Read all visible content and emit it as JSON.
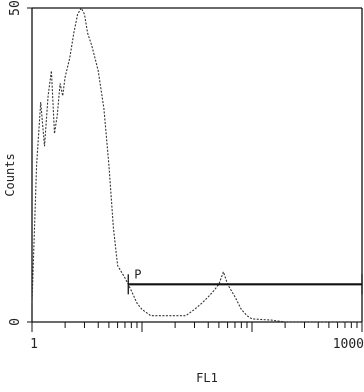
{
  "chart_data": {
    "type": "line",
    "title": "",
    "xlabel": "FL1",
    "ylabel": "Counts",
    "x_scale": "log",
    "xlim": [
      1,
      1000
    ],
    "ylim": [
      0,
      50
    ],
    "x_tick_labels": [
      {
        "label": "1",
        "value": 1
      },
      {
        "label": "1000",
        "value": 1000
      }
    ],
    "y_tick_labels": [
      {
        "label": "0",
        "value": 0
      },
      {
        "label": "50",
        "value": 50
      }
    ],
    "series": [
      {
        "x": [
          1.0,
          1.1,
          1.2,
          1.3,
          1.4,
          1.5,
          1.6,
          1.7,
          1.8,
          1.9,
          2.0,
          2.2,
          2.4,
          2.6,
          2.8,
          3.0,
          3.2,
          3.5,
          4.0,
          4.5,
          5.0,
          5.5,
          6.0,
          7.0,
          8.0,
          9.0,
          10,
          12,
          15,
          20,
          25,
          30,
          35,
          40,
          45,
          50,
          55,
          60,
          70,
          80,
          90,
          100,
          150,
          200,
          300,
          500,
          1000
        ],
        "y": [
          3,
          25,
          35,
          28,
          36,
          40,
          30,
          33,
          38,
          36,
          39,
          42,
          46,
          49,
          50,
          49,
          46,
          44,
          40,
          34,
          25,
          15,
          9,
          7,
          5,
          3,
          2,
          1,
          1,
          1,
          1,
          2,
          3,
          4,
          5,
          6,
          8,
          6,
          4,
          2,
          1,
          0.5,
          0.3,
          0,
          0,
          0,
          0
        ]
      }
    ],
    "gates": [
      {
        "label": "P",
        "x_range": [
          7.5,
          1000
        ],
        "y": 6
      }
    ]
  }
}
